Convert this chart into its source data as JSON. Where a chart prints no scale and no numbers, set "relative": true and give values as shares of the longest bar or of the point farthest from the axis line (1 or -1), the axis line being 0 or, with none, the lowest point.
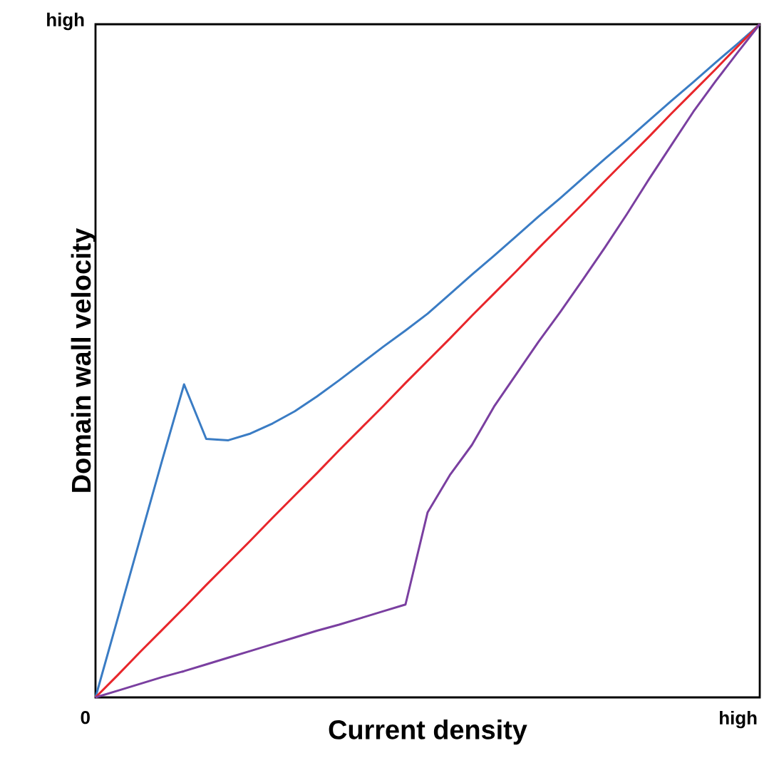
{
  "chart_data": {
    "type": "line",
    "relative": true,
    "xlabel": "Current density",
    "ylabel": "Domain wall velocity",
    "annotations": [
      "0",
      "high",
      "high"
    ],
    "marker": "none",
    "line_style": "solid",
    "categories": [
      null,
      null,
      null,
      null,
      null,
      null,
      null,
      null,
      null,
      null,
      null,
      null,
      null,
      null,
      null,
      null,
      null,
      null,
      null,
      null,
      null,
      null,
      null,
      null,
      null,
      null,
      null,
      null,
      null,
      null,
      null
    ],
    "series": [
      {
        "color": "#3a7cc4",
        "values": [
          0,
          0.117,
          0.234,
          0.351,
          0.465,
          0.384,
          0.382,
          0.392,
          0.407,
          0.425,
          0.447,
          0.471,
          0.496,
          0.521,
          0.545,
          0.57,
          0.599,
          0.628,
          0.656,
          0.685,
          0.714,
          0.742,
          0.771,
          0.8,
          0.828,
          0.857,
          0.886,
          0.914,
          0.943,
          0.971,
          1
        ]
      },
      {
        "color": "#e8262b",
        "values": [
          0,
          0.033,
          0.067,
          0.1,
          0.133,
          0.167,
          0.2,
          0.233,
          0.267,
          0.3,
          0.333,
          0.367,
          0.4,
          0.433,
          0.467,
          0.5,
          0.533,
          0.567,
          0.6,
          0.633,
          0.667,
          0.7,
          0.733,
          0.767,
          0.8,
          0.833,
          0.867,
          0.9,
          0.933,
          0.967,
          1
        ]
      },
      {
        "color": "#7a3fa0",
        "values": [
          0,
          0.01,
          0.02,
          0.03,
          0.039,
          0.049,
          0.059,
          0.069,
          0.079,
          0.089,
          0.099,
          0.108,
          0.118,
          0.128,
          0.138,
          0.275,
          0.33,
          0.375,
          0.432,
          0.48,
          0.528,
          0.573,
          0.62,
          0.668,
          0.718,
          0.77,
          0.82,
          0.87,
          0.915,
          0.958,
          1
        ]
      }
    ]
  }
}
